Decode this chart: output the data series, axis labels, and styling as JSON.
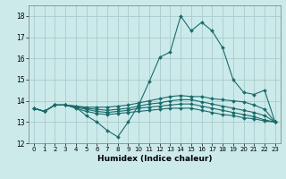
{
  "xlabel": "Humidex (Indice chaleur)",
  "bg_color": "#cceaea",
  "grid_color": "#aacccc",
  "line_color": "#1a6b6b",
  "xlim": [
    -0.5,
    23.5
  ],
  "ylim": [
    12,
    18.5
  ],
  "yticks": [
    12,
    13,
    14,
    15,
    16,
    17,
    18
  ],
  "xticks": [
    0,
    1,
    2,
    3,
    4,
    5,
    6,
    7,
    8,
    9,
    10,
    11,
    12,
    13,
    14,
    15,
    16,
    17,
    18,
    19,
    20,
    21,
    22,
    23
  ],
  "curves": [
    {
      "x": [
        0,
        1,
        2,
        3,
        4,
        5,
        6,
        7,
        8,
        9,
        10,
        11,
        12,
        13,
        14,
        15,
        16,
        17,
        18,
        19,
        20,
        21,
        22,
        23
      ],
      "y": [
        13.65,
        13.5,
        13.8,
        13.8,
        13.7,
        13.3,
        13.0,
        12.6,
        12.3,
        13.0,
        13.8,
        14.9,
        16.05,
        16.3,
        18.0,
        17.3,
        17.7,
        17.3,
        16.5,
        15.0,
        14.4,
        14.3,
        14.5,
        13.0
      ]
    },
    {
      "x": [
        0,
        1,
        2,
        3,
        4,
        5,
        6,
        7,
        8,
        9,
        10,
        11,
        12,
        13,
        14,
        15,
        16,
        17,
        18,
        19,
        20,
        21,
        22,
        23
      ],
      "y": [
        13.65,
        13.5,
        13.8,
        13.8,
        13.75,
        13.7,
        13.7,
        13.7,
        13.75,
        13.8,
        13.9,
        14.0,
        14.1,
        14.2,
        14.25,
        14.2,
        14.2,
        14.1,
        14.05,
        14.0,
        13.95,
        13.8,
        13.6,
        13.0
      ]
    },
    {
      "x": [
        0,
        1,
        2,
        3,
        4,
        5,
        6,
        7,
        8,
        9,
        10,
        11,
        12,
        13,
        14,
        15,
        16,
        17,
        18,
        19,
        20,
        21,
        22,
        23
      ],
      "y": [
        13.65,
        13.5,
        13.8,
        13.8,
        13.75,
        13.65,
        13.6,
        13.55,
        13.6,
        13.65,
        13.75,
        13.85,
        13.9,
        14.0,
        14.05,
        14.05,
        13.95,
        13.85,
        13.75,
        13.65,
        13.55,
        13.45,
        13.3,
        13.0
      ]
    },
    {
      "x": [
        0,
        1,
        2,
        3,
        4,
        5,
        6,
        7,
        8,
        9,
        10,
        11,
        12,
        13,
        14,
        15,
        16,
        17,
        18,
        19,
        20,
        21,
        22,
        23
      ],
      "y": [
        13.65,
        13.5,
        13.8,
        13.8,
        13.7,
        13.6,
        13.5,
        13.45,
        13.5,
        13.55,
        13.65,
        13.7,
        13.75,
        13.8,
        13.85,
        13.85,
        13.75,
        13.65,
        13.55,
        13.45,
        13.35,
        13.25,
        13.1,
        13.0
      ]
    },
    {
      "x": [
        0,
        1,
        2,
        3,
        4,
        5,
        6,
        7,
        8,
        9,
        10,
        11,
        12,
        13,
        14,
        15,
        16,
        17,
        18,
        19,
        20,
        21,
        22,
        23
      ],
      "y": [
        13.65,
        13.5,
        13.8,
        13.8,
        13.65,
        13.5,
        13.4,
        13.35,
        13.4,
        13.45,
        13.5,
        13.55,
        13.6,
        13.65,
        13.65,
        13.65,
        13.55,
        13.45,
        13.35,
        13.3,
        13.2,
        13.15,
        13.05,
        13.0
      ]
    }
  ]
}
